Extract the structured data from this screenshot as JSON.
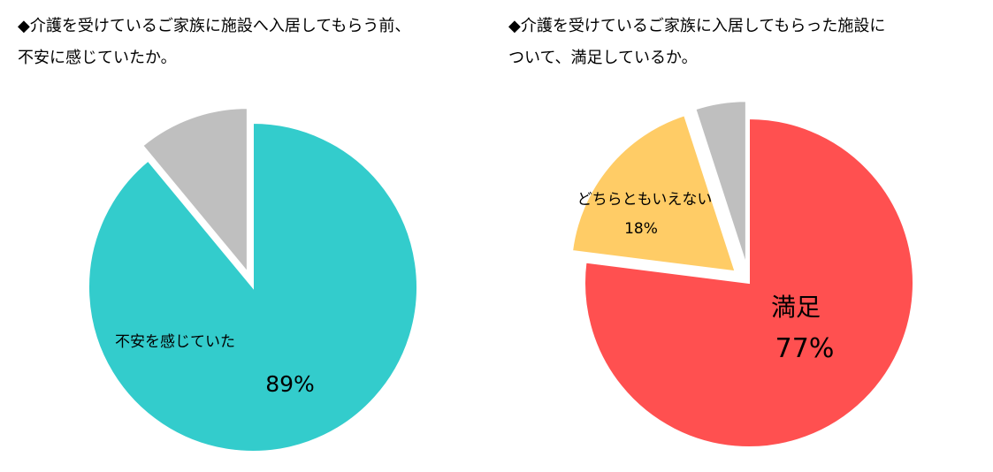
{
  "chart_data": [
    {
      "type": "pie",
      "title": [
        "◆介護を受けているご家族に施設へ入居してもらう前、",
        "不安に感じていたか。"
      ],
      "categories": [
        "不安を感じていた",
        ""
      ],
      "values": [
        89,
        11
      ],
      "value_labels": [
        "89%",
        ""
      ],
      "colors": [
        "#33CCCC",
        "#BFBFBF"
      ],
      "exploded": [
        false,
        true
      ],
      "legend": "none"
    },
    {
      "type": "pie",
      "title": [
        "◆介護を受けているご家族に入居してもらった施設に",
        "ついて、満足しているか。"
      ],
      "categories": [
        "満足",
        "どちらともいえない",
        ""
      ],
      "values": [
        77,
        18,
        5
      ],
      "value_labels": [
        "77%",
        "18%",
        ""
      ],
      "colors": [
        "#FF5050",
        "#FFCC66",
        "#BFBFBF"
      ],
      "exploded": [
        false,
        true,
        true
      ],
      "legend": "none"
    }
  ]
}
